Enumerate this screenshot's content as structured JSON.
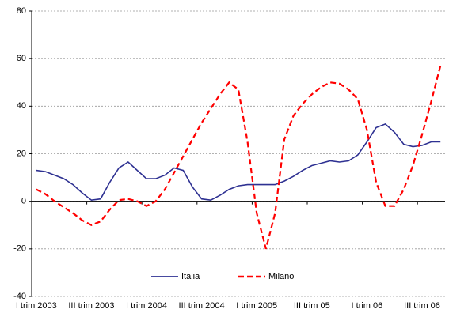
{
  "chart_data": {
    "type": "line",
    "categories": [
      "I trim 2003",
      null,
      null,
      null,
      null,
      null,
      "III trim 2003",
      null,
      null,
      null,
      null,
      null,
      "I trim 2004",
      null,
      null,
      null,
      null,
      null,
      "III trim 2004",
      null,
      null,
      null,
      null,
      null,
      "I trim 2005",
      null,
      null,
      null,
      null,
      null,
      "III trim 05",
      null,
      null,
      null,
      null,
      null,
      "I trim 06",
      null,
      null,
      null,
      null,
      null,
      "III trim 06",
      null,
      null
    ],
    "series": [
      {
        "name": "Italia",
        "color": "#2e3192",
        "dash": "solid",
        "values": [
          13,
          12.5,
          11,
          9.5,
          7,
          3.5,
          0.5,
          1,
          8,
          14,
          16.5,
          13,
          9.5,
          9.5,
          11,
          14,
          13,
          6,
          1,
          0.5,
          2.5,
          5,
          6.5,
          7,
          7,
          7,
          7,
          8.5,
          10.5,
          13,
          15,
          16,
          17,
          16.5,
          17,
          19.5,
          25,
          31,
          32.5,
          29,
          24,
          23,
          23.5,
          25,
          25
        ]
      },
      {
        "name": "Milano",
        "color": "#ff0000",
        "dash": "dashed",
        "values": [
          5,
          3,
          0,
          -2.5,
          -5,
          -8,
          -10,
          -8.5,
          -3.5,
          0.5,
          1,
          0,
          -2,
          0,
          5,
          12,
          19,
          26,
          33,
          39,
          45,
          50,
          47,
          25,
          -5,
          -20,
          -5,
          26,
          36,
          41,
          45,
          48,
          50,
          49.5,
          47,
          43,
          30,
          8,
          -2,
          -2,
          5,
          15,
          28,
          42,
          57
        ]
      }
    ],
    "ylim": [
      -40,
      80
    ],
    "yticks": [
      -40,
      -20,
      0,
      20,
      40,
      60,
      80
    ],
    "grid": true,
    "legend": "lower center"
  }
}
